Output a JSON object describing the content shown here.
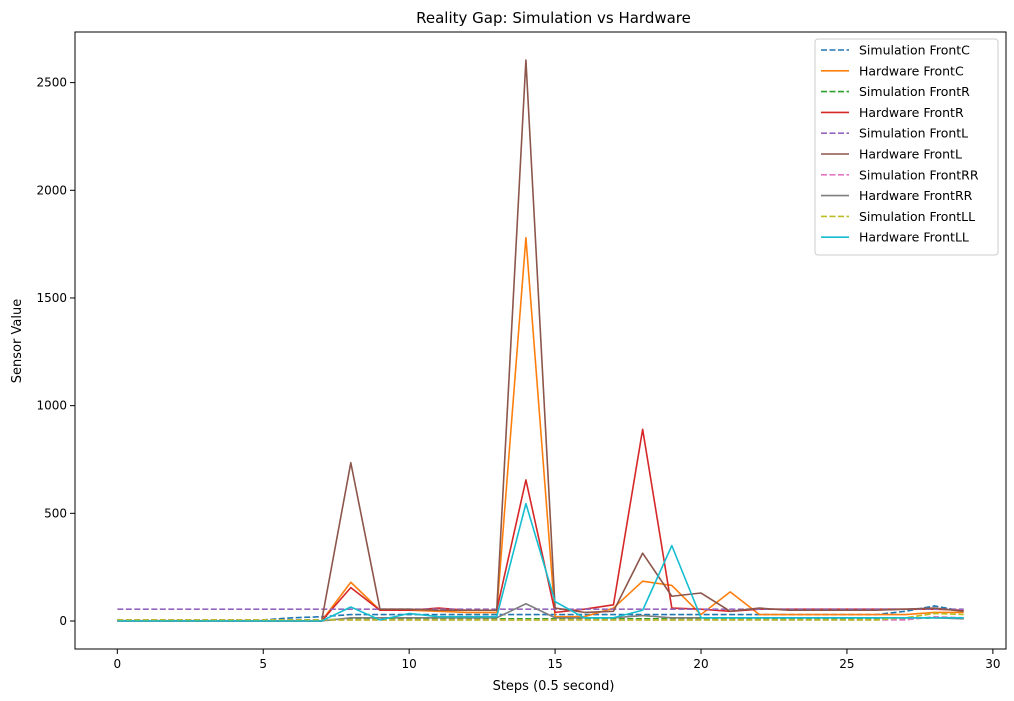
{
  "chart_data": {
    "type": "line",
    "title": "Reality Gap: Simulation vs Hardware",
    "xlabel": "Steps (0.5 second)",
    "ylabel": "Sensor Value",
    "xlim": [
      -1.45,
      30.45
    ],
    "ylim": [
      -130,
      2735
    ],
    "xticks": [
      0,
      5,
      10,
      15,
      20,
      25,
      30
    ],
    "yticks": [
      0,
      500,
      1000,
      1500,
      2000,
      2500
    ],
    "grid": false,
    "legend_position": "top-right",
    "x": [
      0,
      1,
      2,
      3,
      4,
      5,
      6,
      7,
      8,
      9,
      10,
      11,
      12,
      13,
      14,
      15,
      16,
      17,
      18,
      19,
      20,
      21,
      22,
      23,
      24,
      25,
      26,
      27,
      28,
      29
    ],
    "series": [
      {
        "name": "Simulation FrontC",
        "color": "#1f77b4",
        "dashed": true,
        "values": [
          5,
          5,
          5,
          5,
          5,
          5,
          15,
          20,
          30,
          30,
          30,
          30,
          30,
          30,
          30,
          30,
          30,
          30,
          30,
          30,
          30,
          30,
          30,
          30,
          30,
          30,
          30,
          45,
          70,
          45
        ]
      },
      {
        "name": "Hardware FrontC",
        "color": "#ff7f0e",
        "dashed": false,
        "values": [
          0,
          0,
          0,
          0,
          0,
          0,
          0,
          0,
          180,
          50,
          50,
          45,
          40,
          40,
          1780,
          20,
          20,
          60,
          185,
          165,
          30,
          135,
          30,
          30,
          30,
          30,
          30,
          30,
          40,
          40
        ]
      },
      {
        "name": "Simulation FrontR",
        "color": "#2ca02c",
        "dashed": true,
        "values": [
          5,
          5,
          5,
          5,
          5,
          5,
          5,
          5,
          10,
          10,
          10,
          10,
          10,
          10,
          10,
          10,
          10,
          10,
          10,
          10,
          10,
          10,
          10,
          10,
          10,
          10,
          10,
          10,
          15,
          15
        ]
      },
      {
        "name": "Hardware FrontR",
        "color": "#d62728",
        "dashed": false,
        "values": [
          0,
          0,
          0,
          0,
          0,
          0,
          0,
          0,
          155,
          50,
          50,
          60,
          50,
          50,
          655,
          40,
          55,
          75,
          890,
          60,
          55,
          45,
          55,
          55,
          55,
          55,
          55,
          55,
          55,
          50
        ]
      },
      {
        "name": "Simulation FrontL",
        "color": "#9467bd",
        "dashed": true,
        "values": [
          55,
          55,
          55,
          55,
          55,
          55,
          55,
          55,
          55,
          55,
          55,
          55,
          55,
          55,
          55,
          55,
          55,
          55,
          55,
          55,
          55,
          55,
          55,
          55,
          55,
          55,
          55,
          55,
          55,
          55
        ]
      },
      {
        "name": "Hardware FrontL",
        "color": "#8c564b",
        "dashed": false,
        "values": [
          0,
          0,
          0,
          0,
          0,
          0,
          0,
          0,
          735,
          55,
          55,
          50,
          50,
          50,
          2605,
          60,
          40,
          45,
          315,
          115,
          130,
          45,
          60,
          50,
          50,
          50,
          50,
          55,
          60,
          45
        ]
      },
      {
        "name": "Simulation FrontRR",
        "color": "#e377c2",
        "dashed": true,
        "values": [
          5,
          5,
          5,
          5,
          5,
          5,
          5,
          5,
          5,
          5,
          5,
          5,
          5,
          5,
          5,
          5,
          5,
          5,
          5,
          5,
          5,
          5,
          5,
          5,
          5,
          5,
          5,
          5,
          20,
          15
        ]
      },
      {
        "name": "Hardware FrontRR",
        "color": "#7f7f7f",
        "dashed": false,
        "values": [
          0,
          0,
          0,
          0,
          0,
          0,
          0,
          0,
          15,
          15,
          15,
          15,
          15,
          15,
          80,
          15,
          15,
          15,
          25,
          15,
          15,
          15,
          15,
          15,
          15,
          15,
          15,
          15,
          15,
          10
        ]
      },
      {
        "name": "Simulation FrontLL",
        "color": "#bcbd22",
        "dashed": true,
        "values": [
          5,
          5,
          5,
          5,
          5,
          5,
          5,
          5,
          5,
          5,
          5,
          5,
          5,
          5,
          5,
          5,
          5,
          5,
          5,
          5,
          5,
          5,
          5,
          5,
          5,
          5,
          5,
          15,
          35,
          30
        ]
      },
      {
        "name": "Hardware FrontLL",
        "color": "#17becf",
        "dashed": false,
        "values": [
          0,
          0,
          0,
          0,
          0,
          0,
          0,
          0,
          65,
          5,
          35,
          20,
          20,
          20,
          545,
          90,
          15,
          15,
          50,
          350,
          15,
          15,
          15,
          15,
          15,
          15,
          15,
          15,
          15,
          15
        ]
      }
    ]
  }
}
